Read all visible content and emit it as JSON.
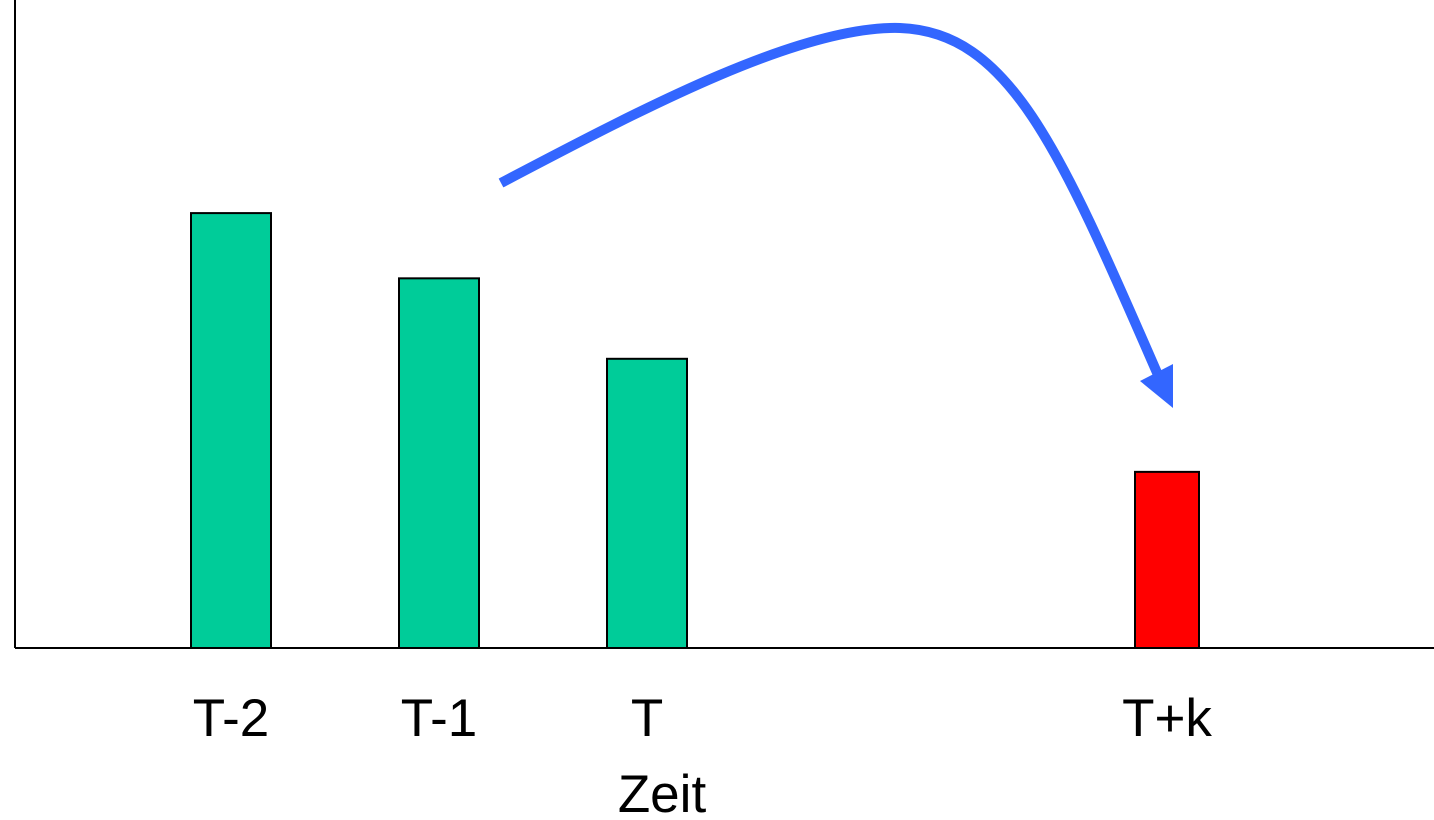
{
  "chart_data": {
    "type": "bar",
    "categories": [
      "T-2",
      "T-1",
      "T",
      "T+k"
    ],
    "values": [
      100,
      85,
      66.5,
      40.5
    ],
    "xlabel": "Zeit",
    "ylabel": "",
    "ylim": [
      0,
      149
    ],
    "grid": false,
    "legend": "none",
    "bar_colors": [
      "#00CC99",
      "#00CC99",
      "#00CC99",
      "#FF0000"
    ],
    "annotation": {
      "type": "curved-arrow",
      "from_category": "T-1",
      "to_category": "T+k",
      "color": "#3366FF"
    }
  }
}
